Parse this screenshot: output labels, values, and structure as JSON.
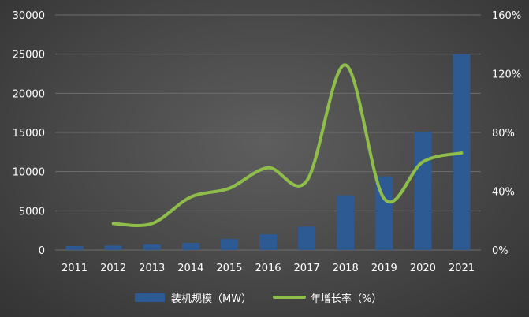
{
  "chart_data": {
    "type": "bar",
    "categories": [
      "2011",
      "2012",
      "2013",
      "2014",
      "2015",
      "2016",
      "2017",
      "2018",
      "2019",
      "2020",
      "2021"
    ],
    "series": [
      {
        "name": "装机规模（MW）",
        "type": "bar",
        "axis": "left",
        "values": [
          500,
          560,
          700,
          900,
          1400,
          2000,
          3000,
          7000,
          9400,
          15100,
          25000
        ]
      },
      {
        "name": "年增长率（%）",
        "type": "line",
        "axis": "right",
        "values": [
          null,
          18,
          18,
          36,
          42,
          56,
          47,
          126,
          35,
          60,
          66
        ]
      }
    ],
    "y_left": {
      "min": 0,
      "max": 30000,
      "ticks": [
        0,
        5000,
        10000,
        15000,
        20000,
        25000,
        30000
      ]
    },
    "y_right": {
      "min": 0,
      "max": 160,
      "ticks": [
        "0%",
        "40%",
        "80%",
        "120%",
        "160%"
      ]
    },
    "grid": true,
    "legend_position": "bottom",
    "colors": {
      "bar": "#2e5a93",
      "line": "#8fbd4a"
    }
  }
}
